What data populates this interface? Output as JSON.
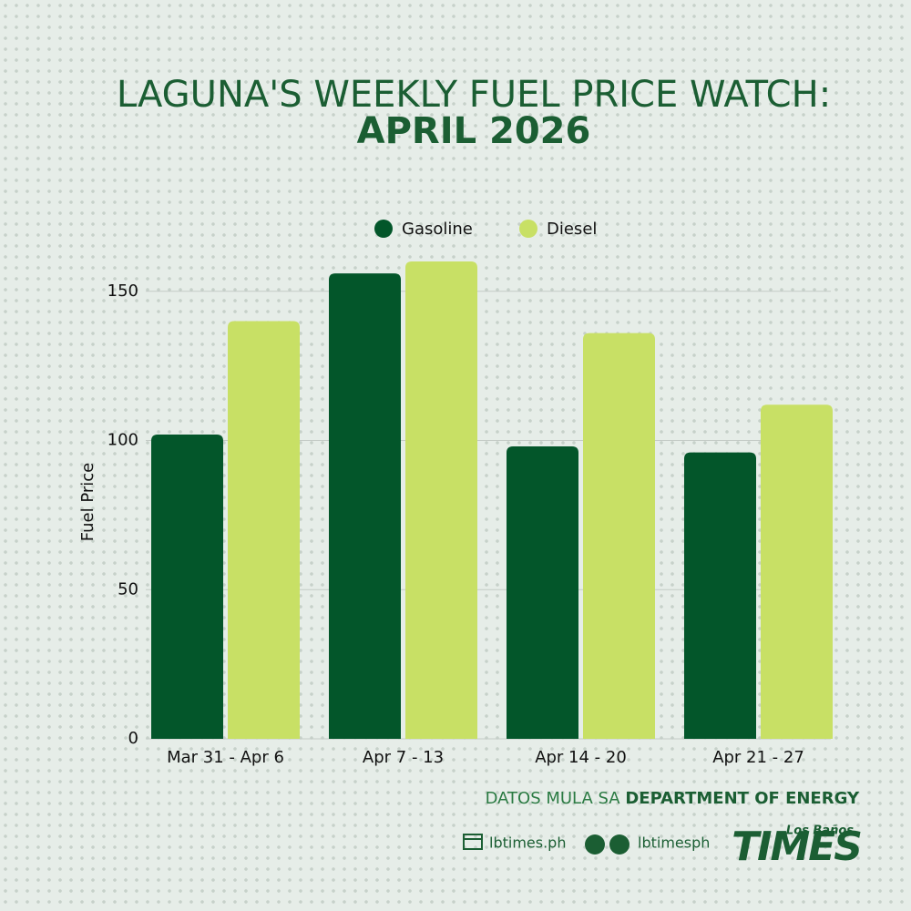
{
  "chart_data": {
    "type": "bar",
    "title": "LAGUNA'S WEEKLY FUEL PRICE WATCH:",
    "subtitle": "APRIL 2026",
    "y_label": "Fuel Price",
    "categories": [
      "Mar 31 - Apr 6",
      "Apr 7 - 13",
      "Apr 14 - 20",
      "Apr 21 - 27"
    ],
    "series": [
      {
        "name": "Gasoline",
        "color": "#03562a",
        "values": [
          102,
          156,
          98,
          96
        ]
      },
      {
        "name": "Diesel",
        "color": "#c8e065",
        "values": [
          140,
          160,
          136,
          112
        ]
      }
    ],
    "ylim": [
      0,
      160
    ],
    "yticks": [
      0,
      50,
      100,
      150
    ],
    "grid": true,
    "legend": "top"
  },
  "source": {
    "prefix": "DATOS MULA SA",
    "name": "DEPARTMENT OF ENERGY"
  },
  "social": {
    "website": "lbtimes.ph",
    "handle": "lbtimesph"
  },
  "logo": {
    "top": "Los Baños",
    "main": "TIMES"
  }
}
